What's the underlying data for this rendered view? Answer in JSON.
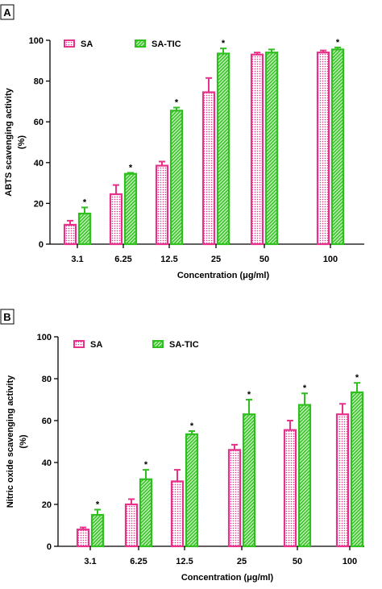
{
  "chart_data": [
    {
      "panel": "A",
      "type": "bar",
      "ylabel_lines": [
        "ABTS scavenging activity",
        "(%)"
      ],
      "xlabel": "Concentration (μg/ml)",
      "ylim": [
        0,
        100
      ],
      "yticks": [
        0,
        20,
        40,
        60,
        80,
        100
      ],
      "legend_position": "top-left",
      "categories": [
        "3.1",
        "6.25",
        "12.5",
        "25",
        "50",
        "100"
      ],
      "series": [
        {
          "name": "SA",
          "color": "#e8318a",
          "pattern": "dots",
          "values": [
            9.5,
            24.5,
            38.5,
            74.5,
            93,
            94
          ],
          "errors": [
            2,
            4.5,
            2,
            7,
            1,
            1
          ]
        },
        {
          "name": "SA-TIC",
          "color": "#2fbf1f",
          "pattern": "hatch",
          "values": [
            15,
            34.5,
            65.5,
            93.5,
            94,
            95.5
          ],
          "errors": [
            3,
            0.5,
            1.5,
            2.5,
            1.5,
            1
          ]
        }
      ],
      "significance_marker": "*",
      "significant_categories": [
        0,
        1,
        2,
        3,
        5
      ]
    },
    {
      "panel": "B",
      "type": "bar",
      "ylabel_lines": [
        "Nitric oxide scavenging activity",
        "(%)"
      ],
      "xlabel": "Concentration (μg/ml)",
      "ylim": [
        0,
        100
      ],
      "yticks": [
        0,
        20,
        40,
        60,
        80,
        100
      ],
      "legend_position": "top-left",
      "categories": [
        "3.1",
        "6.25",
        "12.5",
        "25",
        "50",
        "100"
      ],
      "series": [
        {
          "name": "SA",
          "color": "#e8318a",
          "pattern": "dots",
          "values": [
            8,
            20,
            31,
            46,
            55.5,
            63
          ],
          "errors": [
            1,
            2.5,
            5.5,
            2.5,
            4.5,
            5
          ]
        },
        {
          "name": "SA-TIC",
          "color": "#2fbf1f",
          "pattern": "hatch",
          "values": [
            15,
            32,
            53.5,
            63,
            67.5,
            73.5
          ],
          "errors": [
            2.5,
            4.5,
            1.5,
            7,
            5.5,
            4.5
          ]
        }
      ],
      "significance_marker": "*",
      "significant_categories": [
        0,
        1,
        2,
        3,
        4,
        5
      ]
    }
  ]
}
